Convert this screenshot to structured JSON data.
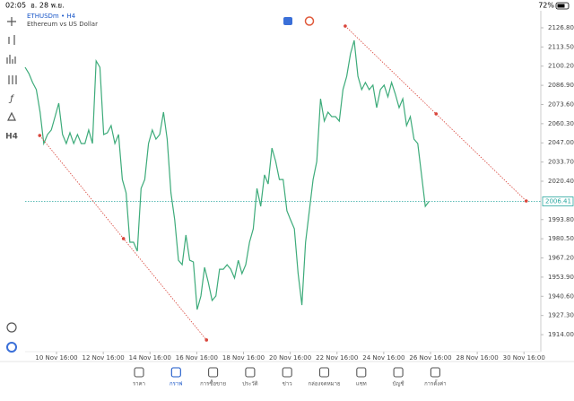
{
  "status_bar": {
    "time": "02:05",
    "date": "อ. 28 พ.ย.",
    "battery": "72%"
  },
  "symbol": {
    "name": "ETHUSDm • H4",
    "description": "Ethereum vs US Dollar"
  },
  "toolbar": {
    "timeframe": "H4"
  },
  "chart_data": {
    "type": "line",
    "color": "#3dab7a",
    "values": [
      2099.4,
      2095.1,
      2088.9,
      2083.9,
      2068.3,
      2046.5,
      2052.8,
      2055.9,
      2065.2,
      2074.5,
      2052.8,
      2046.5,
      2054.0,
      2046.5,
      2052.8,
      2046.5,
      2046.5,
      2055.9,
      2046.5,
      2103.8,
      2099.4,
      2052.8,
      2054.0,
      2059.0,
      2046.5,
      2052.8,
      2021.6,
      2012.3,
      1978.1,
      1978.1,
      1971.9,
      2015.4,
      2021.6,
      2046.5,
      2055.9,
      2049.6,
      2052.8,
      2068.3,
      2049.6,
      2012.3,
      1993.6,
      1965.6,
      1962.5,
      1983.1,
      1965.6,
      1964.4,
      1931.4,
      1940.8,
      1960.7,
      1950.1,
      1937.7,
      1940.8,
      1959.4,
      1959.4,
      1962.5,
      1959.4,
      1953.2,
      1965.6,
      1956.3,
      1962.5,
      1978.1,
      1987.4,
      2015.4,
      2003.0,
      2024.8,
      2018.5,
      2043.4,
      2034.1,
      2021.6,
      2021.6,
      1999.9,
      1993.6,
      1987.4,
      1956.3,
      1934.5,
      1978.1,
      1999.9,
      2021.6,
      2034.1,
      2077.6,
      2062.1,
      2068.3,
      2065.2,
      2065.2,
      2062.1,
      2083.9,
      2093.2,
      2108.8,
      2118.1,
      2093.2,
      2083.9,
      2088.9,
      2083.9,
      2087.0,
      2071.4,
      2083.9,
      2087.0,
      2078.9,
      2088.9,
      2080.8,
      2071.4,
      2077.6,
      2059.0,
      2065.2,
      2049.6,
      2046.5,
      2024.8,
      2003.0,
      2006.4
    ],
    "last_price": 2006.41,
    "last_price_color": "#2aa7a0",
    "trendlines": [
      {
        "color": "#d9453b",
        "x": [
          3.9,
          26.3,
          48.5
        ],
        "values": [
          2052.1,
          1980.6,
          1910.3
        ]
      },
      {
        "color": "#d9453b",
        "x": [
          85.6,
          109.9,
          134.0
        ],
        "values": [
          2128.0,
          2067.1,
          2006.7
        ]
      }
    ],
    "xlim": [
      0,
      137.9
    ],
    "ylim": [
      1902.2,
      2138.6
    ],
    "xticks": [
      {
        "value": 8.4,
        "label": "10 Nov 16:00"
      },
      {
        "value": 20.9,
        "label": "12 Nov 16:00"
      },
      {
        "value": 33.4,
        "label": "14 Nov 16:00"
      },
      {
        "value": 45.9,
        "label": "16 Nov 16:00"
      },
      {
        "value": 58.4,
        "label": "18 Nov 16:00"
      },
      {
        "value": 70.9,
        "label": "20 Nov 16:00"
      },
      {
        "value": 83.4,
        "label": "22 Nov 16:00"
      },
      {
        "value": 95.9,
        "label": "24 Nov 16:00"
      },
      {
        "value": 108.4,
        "label": "26 Nov 16:00"
      },
      {
        "value": 120.9,
        "label": "28 Nov 16:00"
      },
      {
        "value": 133.4,
        "label": "30 Nov 16:00"
      }
    ],
    "yticks": [
      {
        "value": 2126.8,
        "label": "2126.80"
      },
      {
        "value": 2113.5,
        "label": "2113.50"
      },
      {
        "value": 2100.2,
        "label": "2100.20"
      },
      {
        "value": 2086.9,
        "label": "2086.90"
      },
      {
        "value": 2073.6,
        "label": "2073.60"
      },
      {
        "value": 2060.3,
        "label": "2060.30"
      },
      {
        "value": 2047,
        "label": "2047.00"
      },
      {
        "value": 2033.7,
        "label": "2033.70"
      },
      {
        "value": 2020.4,
        "label": "2020.40"
      },
      {
        "value": 1993.8,
        "label": "1993.80"
      },
      {
        "value": 1980.5,
        "label": "1980.50"
      },
      {
        "value": 1967.2,
        "label": "1967.20"
      },
      {
        "value": 1953.9,
        "label": "1953.90"
      },
      {
        "value": 1940.6,
        "label": "1940.60"
      },
      {
        "value": 1927.3,
        "label": "1927.30"
      },
      {
        "value": 1914,
        "label": "1914.00"
      }
    ],
    "grid": false
  },
  "nav": {
    "items": [
      "ราคา",
      "กราฟ",
      "การซื้อขาย",
      "ประวัติ",
      "ข่าว",
      "กล่องจดหมาย",
      "แชท",
      "บัญชี",
      "การตั้งค่า"
    ],
    "active": 1
  }
}
